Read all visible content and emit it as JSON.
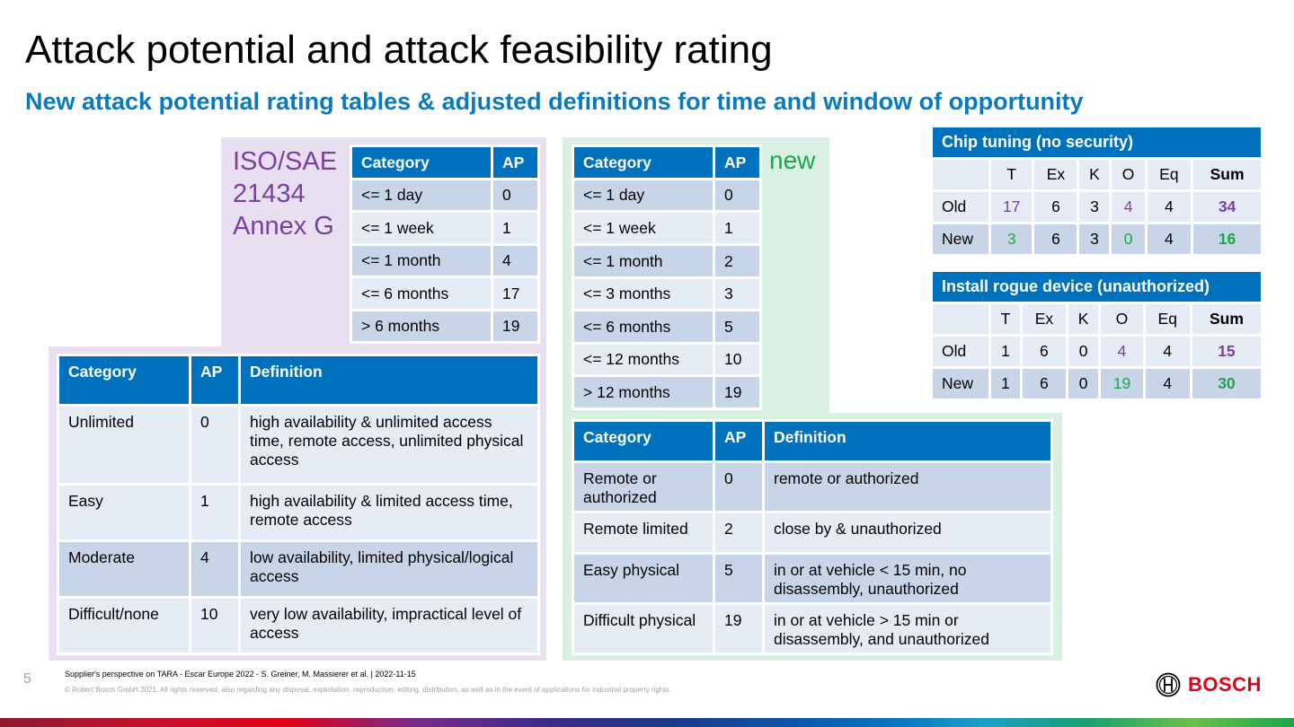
{
  "title": "Attack potential and attack feasibility rating",
  "subtitle": "New attack potential rating tables & adjusted definitions for time and window of opportunity",
  "iso_label": [
    "ISO/SAE",
    "21434",
    "Annex G"
  ],
  "new_label": "new",
  "iso_time_table": {
    "headers": [
      "Category",
      "AP"
    ],
    "rows": [
      [
        "<= 1 day",
        "0"
      ],
      [
        "<= 1 week",
        "1"
      ],
      [
        "<= 1 month",
        "4"
      ],
      [
        "<= 6 months",
        "17"
      ],
      [
        "> 6 months",
        "19"
      ]
    ]
  },
  "iso_window_table": {
    "headers": [
      "Category",
      "AP",
      "Definition"
    ],
    "rows": [
      [
        "Unlimited",
        "0",
        "high availability & unlimited access time, remote access, unlimited physical access"
      ],
      [
        "Easy",
        "1",
        "high availability & limited access time, remote access"
      ],
      [
        "Moderate",
        "4",
        "low availability, limited physical/logical access"
      ],
      [
        "Difficult/none",
        "10",
        "very low availability, impractical level of access"
      ]
    ]
  },
  "new_time_table": {
    "headers": [
      "Category",
      "AP"
    ],
    "rows": [
      [
        "<= 1 day",
        "0"
      ],
      [
        "<= 1 week",
        "1"
      ],
      [
        "<= 1 month",
        "2"
      ],
      [
        "<= 3 months",
        "3"
      ],
      [
        "<= 6 months",
        "5"
      ],
      [
        "<= 12 months",
        "10"
      ],
      [
        "> 12 months",
        "19"
      ]
    ]
  },
  "new_window_table": {
    "headers": [
      "Category",
      "AP",
      "Definition"
    ],
    "rows": [
      [
        "Remote or authorized",
        "0",
        "remote or authorized"
      ],
      [
        "Remote limited",
        "2",
        "close by & unauthorized"
      ],
      [
        "Easy physical",
        "5",
        "in or at vehicle < 15 min, no disassembly, unauthorized"
      ],
      [
        "Difficult physical",
        "19",
        "in or at vehicle > 15 min or disassembly, and unauthorized"
      ]
    ]
  },
  "rating_tables": [
    {
      "caption": "Chip tuning (no security)",
      "headers": [
        "",
        "T",
        "Ex",
        "K",
        "O",
        "Eq",
        "Sum"
      ],
      "rows": [
        {
          "label": "Old",
          "values": [
            "17",
            "6",
            "3",
            "4",
            "4",
            "34"
          ]
        },
        {
          "label": "New",
          "values": [
            "3",
            "6",
            "3",
            "0",
            "4",
            "16"
          ]
        }
      ]
    },
    {
      "caption": "Install rogue device (unauthorized)",
      "headers": [
        "",
        "T",
        "Ex",
        "K",
        "O",
        "Eq",
        "Sum"
      ],
      "rows": [
        {
          "label": "Old",
          "values": [
            "1",
            "6",
            "0",
            "4",
            "4",
            "15"
          ]
        },
        {
          "label": "New",
          "values": [
            "1",
            "6",
            "0",
            "19",
            "4",
            "30"
          ]
        }
      ]
    }
  ],
  "colors": {
    "accent_blue": "#0071bc",
    "purple": "#7b3fa0",
    "green": "#1aa64b",
    "bosch_red": "#e20015"
  },
  "footer": {
    "page_number": "5",
    "line1": "Supplier's perspective on TARA - Escar Europe 2022 - S. Greiner, M. Massierer et al. | 2022-11-15",
    "line2": "© Robert Bosch GmbH 2021. All rights reserved, also regarding any disposal, exploitation, reproduction, editing, distribution, as well as in the event of applications for industrial property rights.",
    "logo_text": "BOSCH",
    "logo_icon": "bosch-armature-icon"
  }
}
